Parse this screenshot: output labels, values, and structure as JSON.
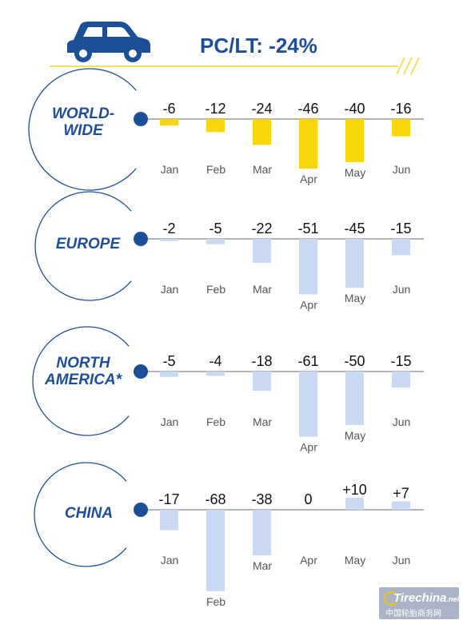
{
  "header": {
    "title": "PC/LT: -24%",
    "icon": "car-icon"
  },
  "colors": {
    "brand_blue": "#1c4f97",
    "world_bar": "#f7d709",
    "region_bar": "#c9d9f1",
    "axis": "#888888",
    "accent_line": "#f2e25a"
  },
  "chart_data": [
    {
      "type": "bar",
      "title": "WORLD-WIDE",
      "categories": [
        "Jan",
        "Feb",
        "Mar",
        "Apr",
        "May",
        "Jun"
      ],
      "values": [
        -6,
        -12,
        -24,
        -46,
        -40,
        -16
      ],
      "labels": [
        "-6",
        "-12",
        "-24",
        "-46",
        "-40",
        "-16"
      ],
      "color": "#f7d709"
    },
    {
      "type": "bar",
      "title": "EUROPE",
      "categories": [
        "Jan",
        "Feb",
        "Mar",
        "Apr",
        "May",
        "Jun"
      ],
      "values": [
        -2,
        -5,
        -22,
        -51,
        -45,
        -15
      ],
      "labels": [
        "-2",
        "-5",
        "-22",
        "-51",
        "-45",
        "-15"
      ],
      "color": "#c9d9f1"
    },
    {
      "type": "bar",
      "title": "NORTH AMERICA*",
      "categories": [
        "Jan",
        "Feb",
        "Mar",
        "Apr",
        "May",
        "Jun"
      ],
      "values": [
        -5,
        -4,
        -18,
        -61,
        -50,
        -15
      ],
      "labels": [
        "-5",
        "-4",
        "-18",
        "-61",
        "-50",
        "-15"
      ],
      "color": "#c9d9f1"
    },
    {
      "type": "bar",
      "title": "CHINA",
      "categories": [
        "Jan",
        "Feb",
        "Mar",
        "Apr",
        "May",
        "Jun"
      ],
      "values": [
        -17,
        -68,
        -38,
        0,
        10,
        7
      ],
      "labels": [
        "-17",
        "-68",
        "-38",
        "0",
        "+10",
        "+7"
      ],
      "color": "#c9d9f1"
    }
  ],
  "watermark": {
    "brand": "Tirechina",
    "suffix": ".net",
    "caption": "中国轮胎商务网"
  }
}
